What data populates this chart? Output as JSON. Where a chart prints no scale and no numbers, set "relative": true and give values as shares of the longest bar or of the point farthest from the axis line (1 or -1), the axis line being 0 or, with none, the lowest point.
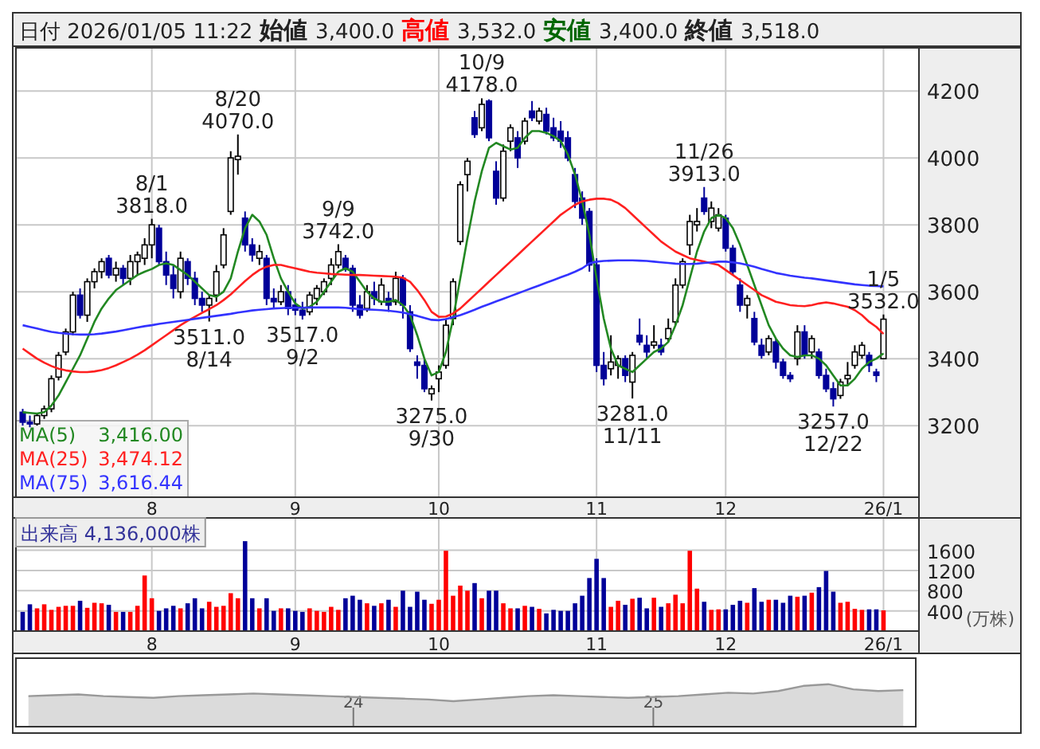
{
  "chart_data": [
    {
      "type": "candlestick",
      "title": "日付 2026/01/05 11:22 始値 3,400.0 高値 3,532.0 安値 3,400.0 終値 3,518.0",
      "categories": [
        null,
        null,
        null,
        null,
        null,
        null,
        null,
        null,
        null,
        null,
        null,
        null,
        null,
        null,
        null,
        null,
        null,
        null,
        "8",
        null,
        null,
        null,
        null,
        null,
        null,
        null,
        null,
        null,
        null,
        null,
        null,
        null,
        null,
        null,
        null,
        null,
        null,
        null,
        "9",
        null,
        null,
        null,
        null,
        null,
        null,
        null,
        null,
        null,
        null,
        null,
        null,
        null,
        null,
        null,
        null,
        null,
        null,
        null,
        "10",
        null,
        null,
        null,
        null,
        null,
        null,
        null,
        null,
        null,
        null,
        null,
        null,
        null,
        null,
        null,
        null,
        null,
        null,
        null,
        null,
        null,
        "11",
        null,
        null,
        null,
        null,
        null,
        null,
        null,
        null,
        null,
        null,
        null,
        null,
        null,
        null,
        null,
        null,
        null,
        "12",
        null,
        null,
        null,
        null,
        null,
        null,
        null,
        null,
        null,
        null,
        null,
        null,
        null,
        null,
        null,
        null,
        null,
        null,
        null,
        null,
        null,
        "26/1"
      ],
      "ohlc": [
        [
          3240,
          3250,
          3200,
          3210
        ],
        [
          3210,
          3230,
          3195,
          3205
        ],
        [
          3205,
          3235,
          3200,
          3230
        ],
        [
          3230,
          3260,
          3220,
          3250
        ],
        [
          3250,
          3350,
          3240,
          3340
        ],
        [
          3345,
          3420,
          3335,
          3410
        ],
        [
          3420,
          3490,
          3410,
          3480
        ],
        [
          3480,
          3600,
          3470,
          3590
        ],
        [
          3590,
          3610,
          3520,
          3530
        ],
        [
          3530,
          3640,
          3510,
          3630
        ],
        [
          3630,
          3670,
          3610,
          3660
        ],
        [
          3660,
          3700,
          3640,
          3690
        ],
        [
          3700,
          3710,
          3640,
          3650
        ],
        [
          3650,
          3690,
          3630,
          3670
        ],
        [
          3670,
          3680,
          3620,
          3640
        ],
        [
          3640,
          3710,
          3620,
          3690
        ],
        [
          3690,
          3720,
          3650,
          3710
        ],
        [
          3700,
          3760,
          3680,
          3740
        ],
        [
          3740,
          3818,
          3700,
          3800
        ],
        [
          3790,
          3800,
          3680,
          3690
        ],
        [
          3690,
          3720,
          3620,
          3650
        ],
        [
          3650,
          3680,
          3580,
          3610
        ],
        [
          3600,
          3720,
          3580,
          3700
        ],
        [
          3690,
          3700,
          3620,
          3640
        ],
        [
          3640,
          3660,
          3560,
          3580
        ],
        [
          3580,
          3600,
          3540,
          3560
        ],
        [
          3560,
          3590,
          3511,
          3580
        ],
        [
          3590,
          3680,
          3570,
          3660
        ],
        [
          3680,
          3790,
          3670,
          3770
        ],
        [
          3840,
          4020,
          3830,
          4000
        ],
        [
          3995,
          4070,
          3950,
          4005
        ],
        [
          3820,
          3840,
          3720,
          3740
        ],
        [
          3740,
          3760,
          3690,
          3710
        ],
        [
          3700,
          3740,
          3680,
          3720
        ],
        [
          3700,
          3710,
          3560,
          3580
        ],
        [
          3580,
          3610,
          3550,
          3570
        ],
        [
          3570,
          3620,
          3560,
          3600
        ],
        [
          3600,
          3620,
          3530,
          3550
        ],
        [
          3560,
          3580,
          3530,
          3545
        ],
        [
          3545,
          3570,
          3517,
          3530
        ],
        [
          3540,
          3600,
          3530,
          3590
        ],
        [
          3580,
          3620,
          3560,
          3610
        ],
        [
          3600,
          3640,
          3590,
          3630
        ],
        [
          3640,
          3700,
          3620,
          3680
        ],
        [
          3680,
          3742,
          3670,
          3720
        ],
        [
          3700,
          3710,
          3660,
          3670
        ],
        [
          3670,
          3680,
          3540,
          3560
        ],
        [
          3560,
          3590,
          3520,
          3530
        ],
        [
          3550,
          3620,
          3540,
          3600
        ],
        [
          3600,
          3630,
          3560,
          3580
        ],
        [
          3570,
          3640,
          3560,
          3620
        ],
        [
          3580,
          3600,
          3540,
          3560
        ],
        [
          3570,
          3660,
          3560,
          3640
        ],
        [
          3640,
          3650,
          3520,
          3560
        ],
        [
          3540,
          3560,
          3420,
          3430
        ],
        [
          3390,
          3410,
          3340,
          3380
        ],
        [
          3380,
          3400,
          3300,
          3310
        ],
        [
          3295,
          3320,
          3275,
          3310
        ],
        [
          3340,
          3380,
          3300,
          3360
        ],
        [
          3380,
          3520,
          3370,
          3500
        ],
        [
          3520,
          3640,
          3500,
          3630
        ],
        [
          3750,
          3930,
          3740,
          3920
        ],
        [
          3950,
          4000,
          3900,
          3990
        ],
        [
          4120,
          4140,
          4060,
          4070
        ],
        [
          4090,
          4178,
          4080,
          4160
        ],
        [
          4170,
          4175,
          4050,
          4060
        ],
        [
          3960,
          3990,
          3860,
          3880
        ],
        [
          3880,
          4040,
          3870,
          4020
        ],
        [
          4050,
          4100,
          4020,
          4090
        ],
        [
          4060,
          4080,
          3970,
          4000
        ],
        [
          4050,
          4120,
          4040,
          4110
        ],
        [
          4140,
          4170,
          4110,
          4120
        ],
        [
          4110,
          4150,
          4100,
          4140
        ],
        [
          4130,
          4150,
          4070,
          4080
        ],
        [
          4090,
          4120,
          4050,
          4060
        ],
        [
          4080,
          4110,
          4030,
          4050
        ],
        [
          4060,
          4080,
          3990,
          4000
        ],
        [
          3950,
          3970,
          3850,
          3870
        ],
        [
          3880,
          3900,
          3800,
          3820
        ],
        [
          3840,
          3850,
          3660,
          3680
        ],
        [
          3680,
          3700,
          3360,
          3380
        ],
        [
          3380,
          3420,
          3320,
          3340
        ],
        [
          3370,
          3470,
          3350,
          3390
        ],
        [
          3380,
          3410,
          3340,
          3400
        ],
        [
          3400,
          3410,
          3330,
          3350
        ],
        [
          3330,
          3420,
          3281,
          3410
        ],
        [
          3470,
          3520,
          3440,
          3450
        ],
        [
          3440,
          3470,
          3400,
          3420
        ],
        [
          3440,
          3500,
          3430,
          3450
        ],
        [
          3440,
          3460,
          3410,
          3420
        ],
        [
          3460,
          3520,
          3450,
          3490
        ],
        [
          3510,
          3640,
          3500,
          3620
        ],
        [
          3620,
          3700,
          3610,
          3690
        ],
        [
          3740,
          3830,
          3710,
          3810
        ],
        [
          3800,
          3850,
          3780,
          3810
        ],
        [
          3880,
          3913,
          3830,
          3840
        ],
        [
          3810,
          3870,
          3790,
          3850
        ],
        [
          3790,
          3850,
          3780,
          3830
        ],
        [
          3820,
          3830,
          3720,
          3730
        ],
        [
          3730,
          3740,
          3650,
          3660
        ],
        [
          3620,
          3640,
          3540,
          3560
        ],
        [
          3560,
          3590,
          3520,
          3580
        ],
        [
          3520,
          3540,
          3440,
          3450
        ],
        [
          3440,
          3460,
          3400,
          3410
        ],
        [
          3420,
          3470,
          3410,
          3460
        ],
        [
          3450,
          3460,
          3370,
          3390
        ],
        [
          3390,
          3400,
          3340,
          3350
        ],
        [
          3350,
          3360,
          3330,
          3340
        ],
        [
          3400,
          3500,
          3380,
          3480
        ],
        [
          3480,
          3500,
          3400,
          3410
        ],
        [
          3420,
          3470,
          3400,
          3460
        ],
        [
          3420,
          3430,
          3340,
          3350
        ],
        [
          3350,
          3370,
          3300,
          3310
        ],
        [
          3310,
          3330,
          3257,
          3280
        ],
        [
          3290,
          3340,
          3280,
          3330
        ],
        [
          3340,
          3390,
          3320,
          3350
        ],
        [
          3380,
          3440,
          3370,
          3420
        ],
        [
          3410,
          3450,
          3400,
          3440
        ],
        [
          3410,
          3420,
          3360,
          3380
        ],
        [
          3360,
          3370,
          3330,
          3350
        ],
        [
          3400,
          3532,
          3400,
          3518
        ]
      ],
      "series": [
        {
          "name": "MA(5)",
          "type": "line",
          "color": "#228822",
          "values": [
            3240,
            3238,
            3236,
            3240,
            3260,
            3290,
            3330,
            3370,
            3410,
            3460,
            3510,
            3550,
            3580,
            3605,
            3620,
            3635,
            3650,
            3660,
            3668,
            3680,
            3685,
            3680,
            3665,
            3650,
            3630,
            3610,
            3590,
            3585,
            3600,
            3640,
            3720,
            3790,
            3830,
            3810,
            3770,
            3700,
            3640,
            3600,
            3565,
            3550,
            3555,
            3570,
            3600,
            3630,
            3660,
            3670,
            3660,
            3630,
            3600,
            3580,
            3570,
            3570,
            3575,
            3560,
            3530,
            3470,
            3400,
            3350,
            3360,
            3420,
            3520,
            3640,
            3760,
            3870,
            3960,
            4030,
            4045,
            4035,
            4025,
            4030,
            4060,
            4080,
            4080,
            4075,
            4065,
            4050,
            4010,
            3950,
            3870,
            3770,
            3640,
            3520,
            3430,
            3380,
            3370,
            3360,
            3380,
            3400,
            3420,
            3430,
            3450,
            3500,
            3560,
            3640,
            3720,
            3780,
            3820,
            3830,
            3820,
            3790,
            3740,
            3680,
            3620,
            3560,
            3500,
            3460,
            3430,
            3410,
            3405,
            3410,
            3410,
            3400,
            3380,
            3350,
            3320,
            3320,
            3340,
            3370,
            3390,
            3400,
            3416
          ]
        },
        {
          "name": "MA(25)",
          "type": "line",
          "color": "#ff2020",
          "values": [
            3430,
            3415,
            3400,
            3388,
            3378,
            3370,
            3365,
            3362,
            3360,
            3360,
            3362,
            3366,
            3372,
            3380,
            3390,
            3400,
            3412,
            3425,
            3440,
            3455,
            3470,
            3485,
            3500,
            3513,
            3525,
            3537,
            3548,
            3560,
            3575,
            3592,
            3612,
            3632,
            3650,
            3665,
            3675,
            3680,
            3680,
            3675,
            3670,
            3665,
            3660,
            3657,
            3655,
            3653,
            3652,
            3651,
            3650,
            3650,
            3649,
            3648,
            3647,
            3646,
            3645,
            3642,
            3630,
            3605,
            3575,
            3540,
            3525,
            3526,
            3535,
            3550,
            3570,
            3590,
            3610,
            3630,
            3650,
            3670,
            3690,
            3710,
            3730,
            3750,
            3770,
            3790,
            3810,
            3830,
            3845,
            3860,
            3870,
            3875,
            3878,
            3878,
            3875,
            3865,
            3850,
            3830,
            3810,
            3790,
            3770,
            3750,
            3735,
            3720,
            3710,
            3700,
            3695,
            3690,
            3685,
            3680,
            3665,
            3650,
            3635,
            3620,
            3605,
            3590,
            3580,
            3570,
            3565,
            3560,
            3558,
            3557,
            3560,
            3565,
            3568,
            3565,
            3560,
            3555,
            3545,
            3530,
            3510,
            3495,
            3474
          ]
        },
        {
          "name": "MA(75)",
          "type": "line",
          "color": "#3333ff",
          "values": [
            3500,
            3495,
            3490,
            3485,
            3480,
            3477,
            3475,
            3473,
            3472,
            3472,
            3473,
            3475,
            3478,
            3481,
            3485,
            3489,
            3493,
            3497,
            3500,
            3504,
            3507,
            3510,
            3513,
            3516,
            3519,
            3522,
            3525,
            3528,
            3531,
            3534,
            3538,
            3541,
            3544,
            3546,
            3548,
            3550,
            3551,
            3552,
            3552,
            3552,
            3553,
            3553,
            3553,
            3553,
            3553,
            3552,
            3550,
            3548,
            3547,
            3546,
            3545,
            3543,
            3541,
            3538,
            3533,
            3528,
            3522,
            3516,
            3515,
            3518,
            3524,
            3530,
            3538,
            3546,
            3555,
            3563,
            3571,
            3579,
            3587,
            3595,
            3603,
            3611,
            3619,
            3627,
            3635,
            3643,
            3651,
            3660,
            3670,
            3685,
            3690,
            3692,
            3693,
            3694,
            3694,
            3694,
            3693,
            3692,
            3690,
            3688,
            3686,
            3684,
            3683,
            3683,
            3684,
            3686,
            3688,
            3690,
            3690,
            3688,
            3685,
            3680,
            3675,
            3668,
            3662,
            3656,
            3652,
            3648,
            3645,
            3642,
            3640,
            3637,
            3634,
            3631,
            3628,
            3625,
            3622,
            3620,
            3618,
            3617,
            3616
          ]
        }
      ],
      "annotations": [
        "3,416.00",
        "3,474.12",
        "3,616.44",
        {
          "text": "8/1\n3818.0",
          "y": 3818
        },
        {
          "text": "8/20\n4070.0",
          "y": 4070
        },
        {
          "text": "9/9\n3742.0",
          "y": 3742
        },
        {
          "text": "10/9\n4178.0",
          "y": 4178
        },
        {
          "text": "11/26\n3913.0",
          "y": 3913
        },
        {
          "text": "1/5\n3532.0",
          "y": 3532
        },
        {
          "text": "3511.0\n8/14",
          "y": 3511
        },
        {
          "text": "3517.0\n9/2",
          "y": 3517
        },
        {
          "text": "3275.0\n9/30",
          "y": 3275
        },
        {
          "text": "3281.0\n11/11",
          "y": 3281
        },
        {
          "text": "3257.0\n12/22",
          "y": 3257
        }
      ],
      "ylim": [
        2986,
        4329
      ],
      "yticks": [
        3200,
        3400,
        3600,
        3800,
        4000,
        4200
      ],
      "grid": true,
      "legend": "bottom left"
    },
    {
      "type": "bar",
      "title": "出来高  4,136,000株",
      "ylabel": "(万株)",
      "categories": [
        null,
        null,
        null,
        null,
        null,
        null,
        null,
        null,
        null,
        null,
        null,
        null,
        null,
        null,
        null,
        null,
        null,
        null,
        "8",
        null,
        null,
        null,
        null,
        null,
        null,
        null,
        null,
        null,
        null,
        null,
        null,
        null,
        null,
        null,
        null,
        null,
        null,
        null,
        "9",
        null,
        null,
        null,
        null,
        null,
        null,
        null,
        null,
        null,
        null,
        null,
        null,
        null,
        null,
        null,
        null,
        null,
        null,
        null,
        "10",
        null,
        null,
        null,
        null,
        null,
        null,
        null,
        null,
        null,
        null,
        null,
        null,
        null,
        null,
        null,
        null,
        null,
        null,
        null,
        null,
        null,
        "11",
        null,
        null,
        null,
        null,
        null,
        null,
        null,
        null,
        null,
        null,
        null,
        null,
        null,
        null,
        null,
        null,
        null,
        "12",
        null,
        null,
        null,
        null,
        null,
        null,
        null,
        null,
        null,
        null,
        null,
        null,
        null,
        null,
        null,
        null,
        null,
        null,
        null,
        null,
        null,
        "26/1"
      ],
      "values": [
        380,
        530,
        450,
        530,
        420,
        480,
        500,
        500,
        600,
        460,
        560,
        550,
        520,
        380,
        380,
        380,
        500,
        1100,
        650,
        400,
        450,
        500,
        450,
        550,
        650,
        450,
        580,
        480,
        500,
        750,
        650,
        1780,
        650,
        450,
        650,
        400,
        450,
        450,
        400,
        380,
        450,
        400,
        380,
        480,
        420,
        650,
        700,
        620,
        550,
        500,
        550,
        620,
        480,
        800,
        480,
        780,
        620,
        540,
        620,
        1590,
        700,
        900,
        800,
        950,
        650,
        800,
        800,
        550,
        450,
        450,
        500,
        480,
        440,
        350,
        420,
        400,
        400,
        550,
        700,
        1050,
        1430,
        1050,
        480,
        600,
        520,
        640,
        660,
        450,
        660,
        480,
        550,
        720,
        550,
        1590,
        840,
        580,
        420,
        430,
        430,
        520,
        600,
        560,
        850,
        580,
        620,
        620,
        560,
        700,
        680,
        700,
        760,
        870,
        1190,
        780,
        560,
        580,
        440,
        420,
        430,
        430,
        410
      ],
      "colors": [
        "#000099",
        "#000099",
        "#ff0000",
        "#ff0000",
        "#ff0000",
        "#ff0000",
        "#ff0000",
        "#ff0000",
        "#000099",
        "#ff0000",
        "#ff0000",
        "#ff0000",
        "#000099",
        "#ff0000",
        "#000099",
        "#ff0000",
        "#ff0000",
        "#ff0000",
        "#ff0000",
        "#000099",
        "#000099",
        "#000099",
        "#ff0000",
        "#000099",
        "#000099",
        "#000099",
        "#ff0000",
        "#ff0000",
        "#ff0000",
        "#ff0000",
        "#ff0000",
        "#000099",
        "#000099",
        "#ff0000",
        "#000099",
        "#000099",
        "#ff0000",
        "#000099",
        "#000099",
        "#000099",
        "#ff0000",
        "#ff0000",
        "#ff0000",
        "#ff0000",
        "#ff0000",
        "#000099",
        "#000099",
        "#000099",
        "#ff0000",
        "#000099",
        "#ff0000",
        "#000099",
        "#ff0000",
        "#000099",
        "#000099",
        "#000099",
        "#000099",
        "#ff0000",
        "#ff0000",
        "#ff0000",
        "#ff0000",
        "#ff0000",
        "#ff0000",
        "#000099",
        "#ff0000",
        "#000099",
        "#000099",
        "#ff0000",
        "#ff0000",
        "#000099",
        "#ff0000",
        "#000099",
        "#ff0000",
        "#000099",
        "#000099",
        "#000099",
        "#000099",
        "#000099",
        "#000099",
        "#000099",
        "#000099",
        "#000099",
        "#ff0000",
        "#ff0000",
        "#000099",
        "#ff0000",
        "#000099",
        "#000099",
        "#ff0000",
        "#000099",
        "#ff0000",
        "#ff0000",
        "#ff0000",
        "#ff0000",
        "#ff0000",
        "#000099",
        "#ff0000",
        "#ff0000",
        "#000099",
        "#000099",
        "#000099",
        "#ff0000",
        "#000099",
        "#000099",
        "#ff0000",
        "#000099",
        "#000099",
        "#000099",
        "#ff0000",
        "#000099",
        "#ff0000",
        "#000099",
        "#000099",
        "#000099",
        "#ff0000",
        "#ff0000",
        "#ff0000",
        "#ff0000",
        "#000099",
        "#000099",
        "#ff0000"
      ],
      "ylim": [
        0,
        2240
      ],
      "yticks": [
        400,
        800,
        1200,
        1600
      ],
      "grid": true
    },
    {
      "type": "area",
      "relative": true,
      "color": "#999999",
      "categories": [
        null,
        null,
        null,
        null,
        null,
        null,
        null,
        null,
        null,
        null,
        null,
        null,
        null,
        "24",
        null,
        null,
        null,
        null,
        null,
        null,
        null,
        null,
        null,
        null,
        null,
        "25",
        null,
        null,
        null,
        null,
        null,
        null,
        null,
        null,
        null,
        null
      ],
      "values": [
        0.72,
        0.74,
        0.76,
        0.72,
        0.7,
        0.68,
        0.72,
        0.74,
        0.76,
        0.78,
        0.76,
        0.74,
        0.72,
        0.7,
        0.68,
        0.66,
        0.64,
        0.6,
        0.64,
        0.68,
        0.72,
        0.74,
        0.72,
        0.7,
        0.68,
        0.7,
        0.72,
        0.76,
        0.8,
        0.78,
        0.84,
        0.96,
        1,
        0.88,
        0.84,
        0.86
      ]
    }
  ]
}
